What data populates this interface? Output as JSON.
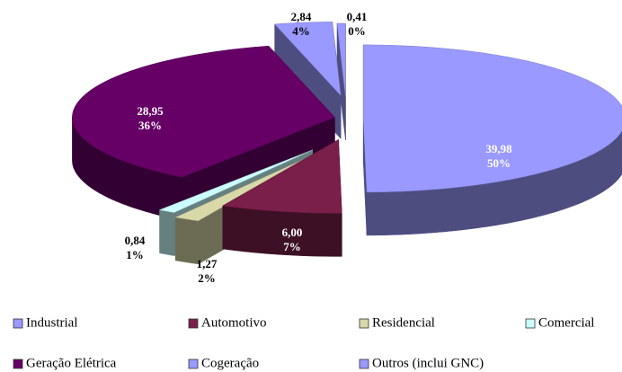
{
  "chart_data": {
    "type": "pie",
    "categories": [
      "Industrial",
      "Automotivo",
      "Residencial",
      "Comercial",
      "Geração Elétrica",
      "Cogeração",
      "Outros (inclui GNC)"
    ],
    "values": [
      39.98,
      6.0,
      1.27,
      0.84,
      28.95,
      2.84,
      0.41
    ],
    "value_labels": [
      "39,98",
      "6,00",
      "1,27",
      "0,84",
      "28,95",
      "2,84",
      "0,41"
    ],
    "percents": [
      50,
      7,
      2,
      1,
      36,
      4,
      0
    ],
    "percent_labels": [
      "50%",
      "7%",
      "2%",
      "1%",
      "36%",
      "4%",
      "0%"
    ],
    "colors": [
      "#9999ff",
      "#7a1f4a",
      "#d8d8a8",
      "#ccffff",
      "#660066",
      "#9999ff",
      "#9999ff"
    ]
  }
}
